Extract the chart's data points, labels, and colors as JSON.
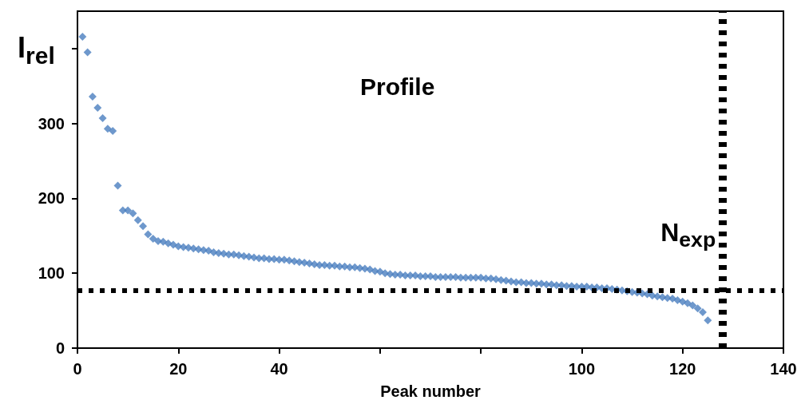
{
  "chart_data": {
    "type": "scatter",
    "title": "Profile",
    "xlabel": "Peak number",
    "ylabel": "I$_{rel}$",
    "x": [
      1,
      2,
      3,
      4,
      5,
      6,
      7,
      8,
      9,
      10,
      11,
      12,
      13,
      14,
      15,
      16,
      17,
      18,
      19,
      20,
      21,
      22,
      23,
      24,
      25,
      26,
      27,
      28,
      29,
      30,
      31,
      32,
      33,
      34,
      35,
      36,
      37,
      38,
      39,
      40,
      41,
      42,
      43,
      44,
      45,
      46,
      47,
      48,
      49,
      50,
      51,
      52,
      53,
      54,
      55,
      56,
      57,
      58,
      59,
      60,
      61,
      62,
      63,
      64,
      65,
      66,
      67,
      68,
      69,
      70,
      71,
      72,
      73,
      74,
      75,
      76,
      77,
      78,
      79,
      80,
      81,
      82,
      83,
      84,
      85,
      86,
      87,
      88,
      89,
      90,
      91,
      92,
      93,
      94,
      95,
      96,
      97,
      98,
      99,
      100,
      101,
      102,
      103,
      104,
      105,
      106,
      107,
      108,
      109,
      110,
      111,
      112,
      113,
      114,
      115,
      116,
      117,
      118,
      119,
      120,
      121,
      122,
      123,
      124,
      125
    ],
    "series": [
      {
        "color": "#4a7ebf",
        "values": [
          416,
          395,
          336,
          321,
          307,
          293,
          290,
          217,
          184,
          184,
          180,
          171,
          163,
          152,
          146,
          143,
          142,
          140,
          138,
          136,
          135,
          134,
          133,
          132,
          131,
          130,
          128,
          127,
          126,
          125,
          125,
          124,
          123,
          122,
          121,
          120,
          120,
          119,
          119,
          118,
          118,
          117,
          116,
          115,
          114,
          113,
          112,
          111,
          111,
          110,
          110,
          109,
          109,
          108,
          108,
          107,
          106,
          105,
          103,
          102,
          100,
          99,
          98,
          98,
          97,
          97,
          97,
          96,
          96,
          96,
          95,
          95,
          95,
          95,
          95,
          94,
          94,
          94,
          94,
          94,
          93,
          93,
          92,
          91,
          90,
          89,
          88,
          88,
          87,
          87,
          86,
          86,
          85,
          85,
          84,
          84,
          83,
          83,
          82,
          82,
          82,
          81,
          81,
          80,
          80,
          79,
          78,
          77,
          76,
          75,
          74,
          73,
          72,
          70,
          69,
          68,
          67,
          66,
          64,
          62,
          60,
          57,
          53,
          48,
          37
        ]
      }
    ],
    "xlim": [
      0,
      140
    ],
    "xticks": [
      0,
      20,
      40,
      {
        "value": 60,
        "label": null
      },
      {
        "value": 80,
        "label": null
      },
      100,
      120,
      140
    ],
    "ylim": [
      0,
      450
    ],
    "yticks": [
      0,
      100,
      200,
      300,
      {
        "value": 400,
        "label": null
      }
    ],
    "ref_lines": [
      {
        "axis": "y",
        "value": 77,
        "color": "#000000",
        "line_style": "dotted"
      },
      {
        "axis": "x",
        "value": 128,
        "label": "N$_{exp}$",
        "color": "#000000",
        "line_style": "dotted"
      }
    ],
    "marker": "diamond",
    "grid": false
  }
}
